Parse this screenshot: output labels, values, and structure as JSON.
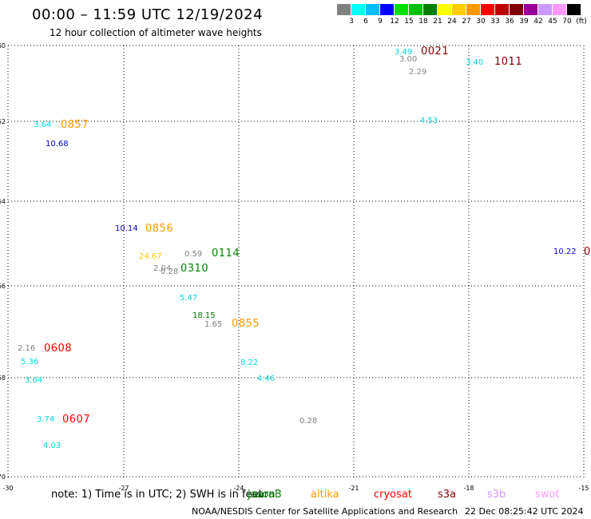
{
  "header": {
    "title": "00:00 – 11:59 UTC 12/19/2024",
    "subtitle": "12 hour collection of altimeter wave heights"
  },
  "legend": {
    "colors": [
      "#808080",
      "#00ffff",
      "#00bfff",
      "#0000ff",
      "#00e000",
      "#00c000",
      "#008000",
      "#ffff00",
      "#ffcc00",
      "#ff9900",
      "#ff0000",
      "#c00000",
      "#800000",
      "#990099",
      "#cc99ff",
      "#ff99ff",
      "#000000"
    ],
    "labels": [
      "3",
      "6",
      "9",
      "12",
      "15",
      "18",
      "21",
      "24",
      "27",
      "30",
      "33",
      "36",
      "39",
      "42",
      "45",
      "70",
      "(ft)"
    ]
  },
  "map": {
    "lat_ticks": [
      "-60",
      "-62",
      "-64",
      "-66",
      "-68",
      "-70"
    ],
    "lon_ticks": [
      "-30",
      "-27",
      "-24",
      "-21",
      "-18",
      "-15"
    ]
  },
  "observations": [
    {
      "text": "3.49",
      "color": "#00d8d8"
    },
    {
      "text": "0021",
      "color": "#800000"
    },
    {
      "text": "3.00",
      "color": "#808080"
    },
    {
      "text": "2.29",
      "color": "#808080"
    },
    {
      "text": "3.40",
      "color": "#00d8d8"
    },
    {
      "text": "1011",
      "color": "#800000"
    },
    {
      "text": "3.64",
      "color": "#00d8d8"
    },
    {
      "text": "0857",
      "color": "#ff9900"
    },
    {
      "text": "10.68",
      "color": "#0000c0"
    },
    {
      "text": "4.53",
      "color": "#00d8d8"
    },
    {
      "text": "10.14",
      "color": "#0000c0"
    },
    {
      "text": "0856",
      "color": "#ff9900"
    },
    {
      "text": "24.67",
      "color": "#ffcc00"
    },
    {
      "text": "0.59",
      "color": "#808080"
    },
    {
      "text": "0114",
      "color": "#008000"
    },
    {
      "text": "2.04",
      "color": "#808080"
    },
    {
      "text": "0.28",
      "color": "#808080"
    },
    {
      "text": "0310",
      "color": "#008000"
    },
    {
      "text": "10.22",
      "color": "#0000c0"
    },
    {
      "text": "0",
      "color": "#800000"
    },
    {
      "text": "5.47",
      "color": "#00d8d8"
    },
    {
      "text": "18.15",
      "color": "#008000"
    },
    {
      "text": "1.65",
      "color": "#808080"
    },
    {
      "text": "0855",
      "color": "#ff9900"
    },
    {
      "text": "2.16",
      "color": "#808080"
    },
    {
      "text": "0608",
      "color": "#ff0000"
    },
    {
      "text": "5.36",
      "color": "#00d8d8"
    },
    {
      "text": "8.22",
      "color": "#00d8d8"
    },
    {
      "text": "3.64",
      "color": "#00d8d8"
    },
    {
      "text": "4.46",
      "color": "#00d8d8"
    },
    {
      "text": "3.74",
      "color": "#00d8d8"
    },
    {
      "text": "0607",
      "color": "#ff0000"
    },
    {
      "text": "0.28",
      "color": "#808080"
    },
    {
      "text": "4.03",
      "color": "#00d8d8"
    }
  ],
  "footer": {
    "note": "note:  1) Time is in UTC;  2) SWH is in feet",
    "missions": [
      {
        "name": "jason3",
        "color": "#008000"
      },
      {
        "name": "saral",
        "color": "#006400"
      },
      {
        "name": "altika",
        "color": "#ff9900"
      },
      {
        "name": "cryosat",
        "color": "#ff0000"
      },
      {
        "name": "s3a",
        "color": "#800000"
      },
      {
        "name": "s3b",
        "color": "#cc99ff"
      },
      {
        "name": "swot",
        "color": "#ff99ff"
      }
    ],
    "credit": "NOAA/NESDIS Center for Satellite Applications and Research",
    "timestamp": "22 Dec 08:25:42 UTC 2024"
  }
}
